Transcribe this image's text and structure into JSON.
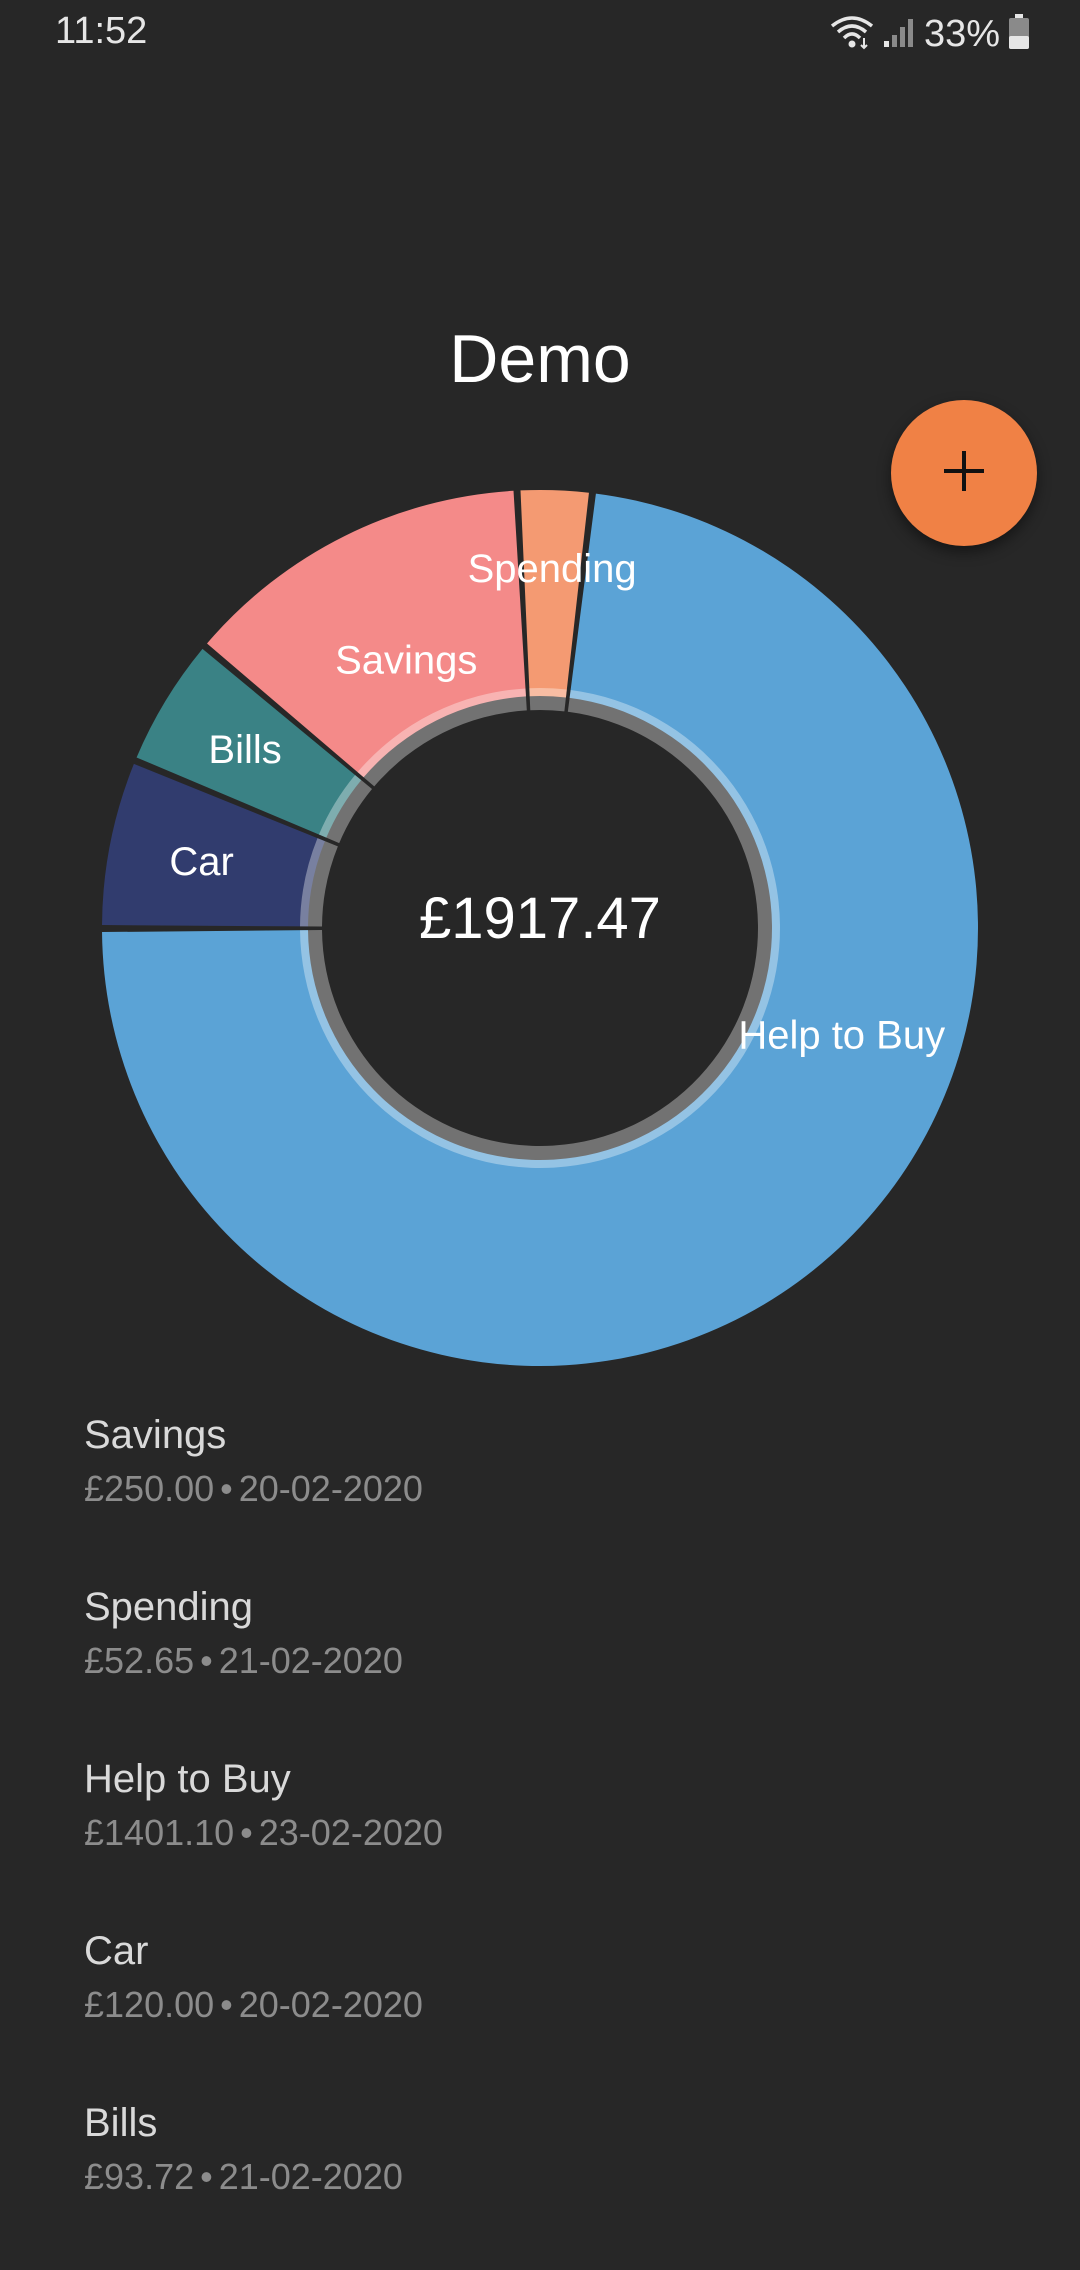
{
  "status_bar": {
    "time": "11:52",
    "battery": "33%"
  },
  "page": {
    "title": "Demo"
  },
  "fab": {
    "icon": "plus-icon",
    "color": "#f08145"
  },
  "chart_data": {
    "type": "pie",
    "variant": "donut",
    "center_label": "£1917.47",
    "slices": [
      {
        "label": "Help to Buy",
        "value": 1401.1,
        "color": "#5ba3d6"
      },
      {
        "label": "Car",
        "value": 120.0,
        "color": "#313c6e"
      },
      {
        "label": "Bills",
        "value": 93.72,
        "color": "#3a8285"
      },
      {
        "label": "Savings",
        "value": 250.0,
        "color": "#f48a89"
      },
      {
        "label": "Spending",
        "value": 52.65,
        "color": "#f49a72"
      }
    ]
  },
  "items": [
    {
      "name": "Savings",
      "amount": "£250.00",
      "date": "20-02-2020"
    },
    {
      "name": "Spending",
      "amount": "£52.65",
      "date": "21-02-2020"
    },
    {
      "name": "Help to Buy",
      "amount": "£1401.10",
      "date": "23-02-2020"
    },
    {
      "name": "Car",
      "amount": "£120.00",
      "date": "20-02-2020"
    },
    {
      "name": "Bills",
      "amount": "£93.72",
      "date": "21-02-2020"
    }
  ],
  "separator": "•"
}
